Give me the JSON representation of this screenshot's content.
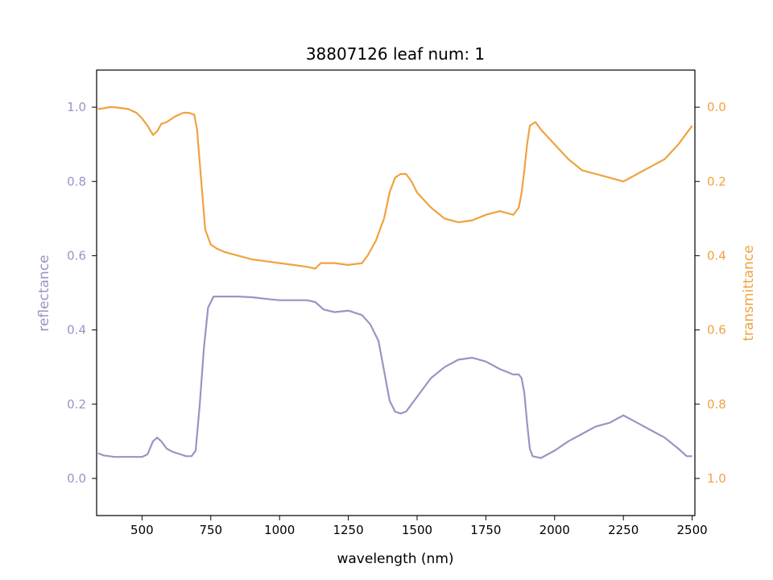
{
  "chart_data": {
    "type": "line",
    "title": "38807126 leaf num: 1",
    "xlabel": "wavelength (nm)",
    "ylabel_left": "reflectance",
    "ylabel_right": "transmittance",
    "xlim": [
      335,
      2510
    ],
    "ylim_left": [
      -0.1,
      1.1
    ],
    "ylim_right_inverted": [
      1.1,
      -0.1
    ],
    "x_ticks": [
      500,
      750,
      1000,
      1250,
      1500,
      1750,
      2000,
      2250,
      2500
    ],
    "y_left_ticks": [
      0.0,
      0.2,
      0.4,
      0.6,
      0.8,
      1.0
    ],
    "y_right_ticks": [
      0.0,
      0.2,
      0.4,
      0.6,
      0.8,
      1.0
    ],
    "colors": {
      "reflectance": "#9a94c4",
      "transmittance": "#f0a23e"
    },
    "grid": false,
    "series": [
      {
        "name": "reflectance",
        "axis": "left",
        "x": [
          340,
          360,
          400,
          450,
          500,
          520,
          540,
          555,
          570,
          590,
          610,
          640,
          660,
          680,
          695,
          710,
          725,
          740,
          760,
          790,
          850,
          900,
          960,
          1000,
          1050,
          1100,
          1130,
          1160,
          1200,
          1250,
          1300,
          1330,
          1360,
          1380,
          1400,
          1420,
          1440,
          1460,
          1500,
          1550,
          1600,
          1650,
          1700,
          1750,
          1800,
          1850,
          1870,
          1880,
          1890,
          1900,
          1910,
          1920,
          1950,
          2000,
          2050,
          2100,
          2150,
          2200,
          2250,
          2300,
          2350,
          2400,
          2450,
          2480,
          2500
        ],
        "values": [
          0.068,
          0.062,
          0.058,
          0.058,
          0.058,
          0.065,
          0.1,
          0.11,
          0.1,
          0.08,
          0.072,
          0.065,
          0.06,
          0.06,
          0.075,
          0.2,
          0.35,
          0.46,
          0.49,
          0.49,
          0.49,
          0.488,
          0.483,
          0.48,
          0.48,
          0.48,
          0.475,
          0.455,
          0.448,
          0.452,
          0.44,
          0.415,
          0.37,
          0.29,
          0.21,
          0.18,
          0.175,
          0.18,
          0.22,
          0.27,
          0.3,
          0.32,
          0.325,
          0.315,
          0.295,
          0.28,
          0.28,
          0.27,
          0.23,
          0.15,
          0.08,
          0.06,
          0.055,
          0.075,
          0.1,
          0.12,
          0.14,
          0.15,
          0.17,
          0.15,
          0.13,
          0.11,
          0.08,
          0.06,
          0.06
        ]
      },
      {
        "name": "transmittance",
        "axis": "right",
        "x": [
          340,
          360,
          380,
          400,
          450,
          480,
          500,
          520,
          540,
          555,
          570,
          590,
          620,
          650,
          670,
          690,
          700,
          710,
          730,
          750,
          770,
          800,
          850,
          900,
          950,
          1000,
          1050,
          1100,
          1130,
          1150,
          1200,
          1250,
          1300,
          1320,
          1350,
          1380,
          1400,
          1420,
          1440,
          1460,
          1480,
          1500,
          1550,
          1600,
          1650,
          1700,
          1750,
          1800,
          1850,
          1870,
          1880,
          1890,
          1900,
          1910,
          1930,
          1950,
          2000,
          2050,
          2100,
          2150,
          2200,
          2250,
          2300,
          2350,
          2400,
          2450,
          2480,
          2500
        ],
        "values": [
          0.005,
          0.003,
          0.0,
          0.0,
          0.005,
          0.015,
          0.03,
          0.05,
          0.075,
          0.065,
          0.045,
          0.04,
          0.025,
          0.015,
          0.015,
          0.02,
          0.06,
          0.15,
          0.33,
          0.37,
          0.38,
          0.39,
          0.4,
          0.41,
          0.415,
          0.42,
          0.425,
          0.43,
          0.435,
          0.42,
          0.42,
          0.425,
          0.42,
          0.4,
          0.36,
          0.3,
          0.23,
          0.19,
          0.18,
          0.18,
          0.2,
          0.23,
          0.27,
          0.3,
          0.31,
          0.305,
          0.29,
          0.28,
          0.29,
          0.27,
          0.23,
          0.17,
          0.1,
          0.05,
          0.04,
          0.06,
          0.1,
          0.14,
          0.17,
          0.18,
          0.19,
          0.2,
          0.18,
          0.16,
          0.14,
          0.1,
          0.07,
          0.05
        ]
      }
    ]
  }
}
